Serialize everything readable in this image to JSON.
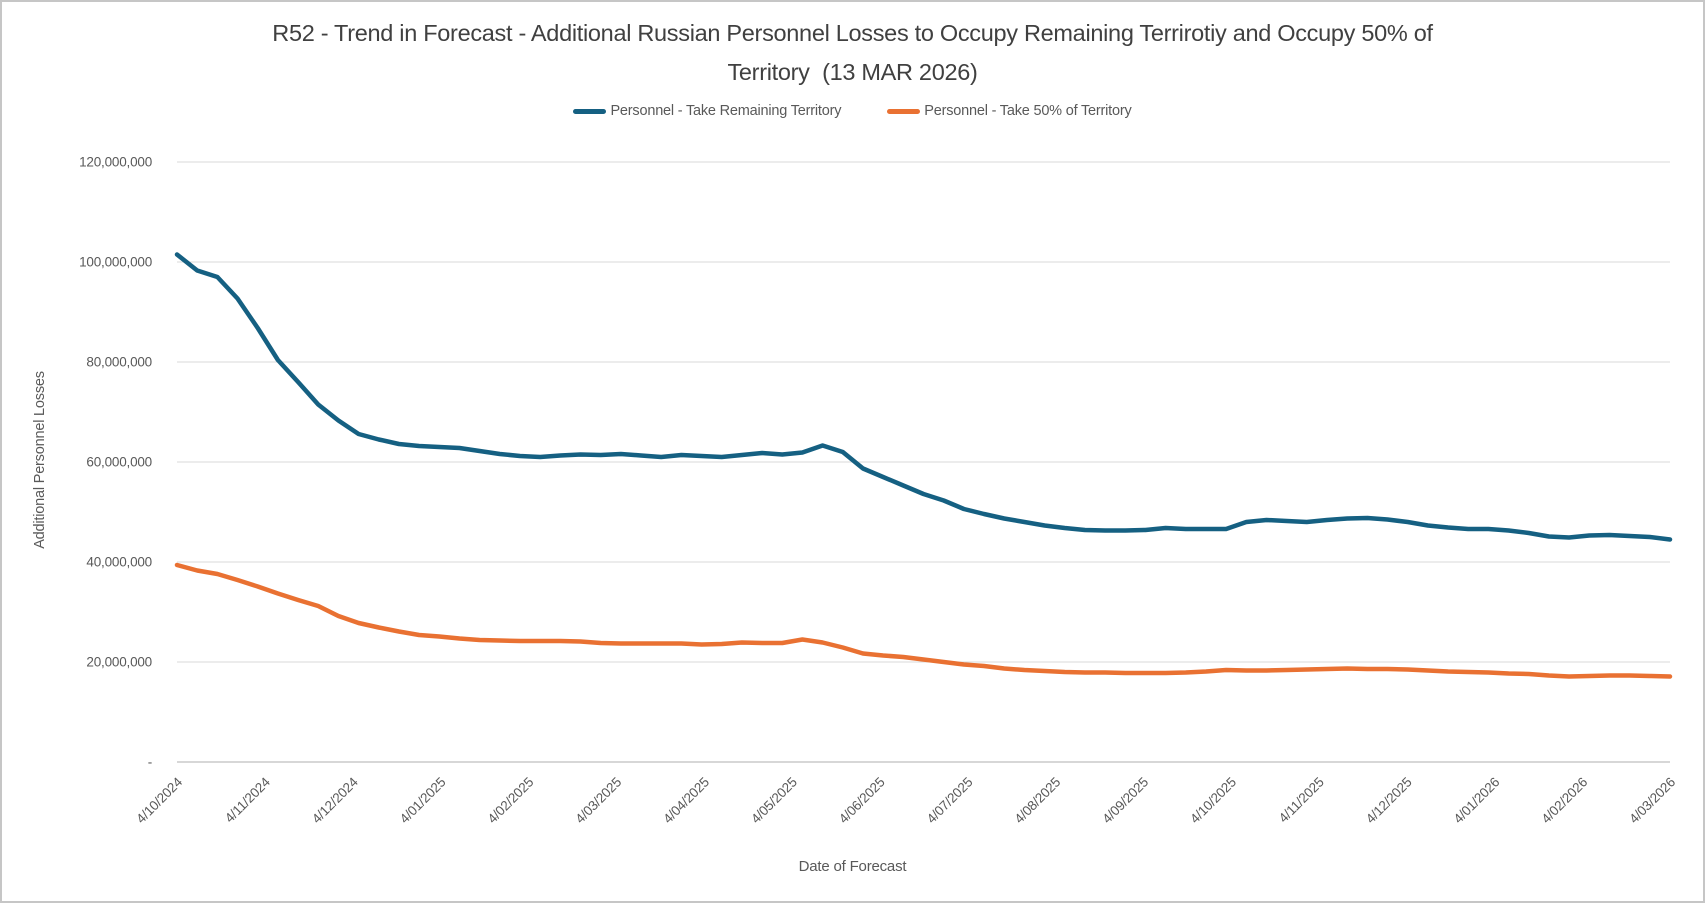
{
  "window": {
    "border_color": "#c6c6c6",
    "background": "#ffffff"
  },
  "chart": {
    "title_line1": "R52 - Trend in Forecast - Additional Russian Personnel Losses to Occupy Remaining Terrirotiy and Occupy 50% of",
    "title_line2": "Territory  (13 MAR 2026)",
    "x_axis_title": "Date of Forecast",
    "y_axis_title": "Additional Personnel Losses",
    "legend": [
      {
        "label": "Personnel - Take Remaining Territory",
        "color": "#156082"
      },
      {
        "label": "Personnel - Take 50% of Territory",
        "color": "#E97132"
      }
    ]
  },
  "colors": {
    "gridline": "#D9D9D9",
    "axis_line": "#BFBFBF",
    "tick_text": "#595959",
    "title_text": "#404040",
    "series_blue": "#156082",
    "series_orange": "#E97132"
  },
  "chart_data": {
    "type": "line",
    "title": "R52 - Trend in Forecast - Additional Russian Personnel Losses to Occupy Remaining Terrirotiy and Occupy 50% of Territory  (13 MAR 2026)",
    "xlabel": "Date of Forecast",
    "ylabel": "Additional Personnel Losses",
    "x_description": "Weekly forecast dates (DD/MM/YYYY), 4 Oct 2024 through 13 Mar 2026",
    "x_tick_labels": [
      "4/10/2024",
      "4/11/2024",
      "4/12/2024",
      "4/01/2025",
      "4/02/2025",
      "4/03/2025",
      "4/04/2025",
      "4/05/2025",
      "4/06/2025",
      "4/07/2025",
      "4/08/2025",
      "4/09/2025",
      "4/10/2025",
      "4/11/2025",
      "4/12/2025",
      "4/01/2026",
      "4/02/2026",
      "4/03/2026"
    ],
    "y_tick_labels": [
      "-",
      "20,000,000",
      "40,000,000",
      "60,000,000",
      "80,000,000",
      "100,000,000",
      "120,000,000"
    ],
    "ylim": [
      0,
      120000000
    ],
    "y_major_unit": 20000000,
    "grid": true,
    "legend_position": "top",
    "value_unit": "additional personnel losses (persons), values stored in millions",
    "series": [
      {
        "name": "Personnel - Take Remaining Territory",
        "color": "#156082",
        "values_millions": [
          101.5,
          98.3,
          97.0,
          92.7,
          86.8,
          80.4,
          76.0,
          71.5,
          68.3,
          65.6,
          64.5,
          63.6,
          63.2,
          63.0,
          62.8,
          62.2,
          61.6,
          61.2,
          61.0,
          61.3,
          61.5,
          61.4,
          61.6,
          61.3,
          61.0,
          61.4,
          61.2,
          61.0,
          61.4,
          61.8,
          61.5,
          61.9,
          63.3,
          62.0,
          58.7,
          57.0,
          55.3,
          53.6,
          52.3,
          50.6,
          49.6,
          48.7,
          48.0,
          47.3,
          46.8,
          46.4,
          46.3,
          46.3,
          46.4,
          46.8,
          46.6,
          46.6,
          46.6,
          48.0,
          48.4,
          48.2,
          48.0,
          48.4,
          48.7,
          48.8,
          48.5,
          48.0,
          47.3,
          46.9,
          46.6,
          46.6,
          46.3,
          45.8,
          45.1,
          44.9,
          45.3,
          45.4,
          45.2,
          45.0,
          44.5
        ]
      },
      {
        "name": "Personnel - Take 50% of Territory",
        "color": "#E97132",
        "values_millions": [
          39.4,
          38.3,
          37.6,
          36.4,
          35.1,
          33.7,
          32.4,
          31.2,
          29.2,
          27.8,
          26.9,
          26.1,
          25.4,
          25.1,
          24.7,
          24.4,
          24.3,
          24.2,
          24.2,
          24.2,
          24.1,
          23.8,
          23.7,
          23.7,
          23.7,
          23.7,
          23.5,
          23.6,
          23.9,
          23.8,
          23.8,
          24.5,
          23.9,
          22.9,
          21.7,
          21.3,
          21.0,
          20.5,
          20.0,
          19.5,
          19.2,
          18.7,
          18.4,
          18.2,
          18.0,
          17.9,
          17.9,
          17.8,
          17.8,
          17.8,
          17.9,
          18.1,
          18.4,
          18.3,
          18.3,
          18.4,
          18.5,
          18.6,
          18.7,
          18.6,
          18.6,
          18.5,
          18.3,
          18.1,
          18.0,
          17.9,
          17.7,
          17.6,
          17.3,
          17.1,
          17.2,
          17.3,
          17.3,
          17.2,
          17.1
        ]
      }
    ]
  }
}
